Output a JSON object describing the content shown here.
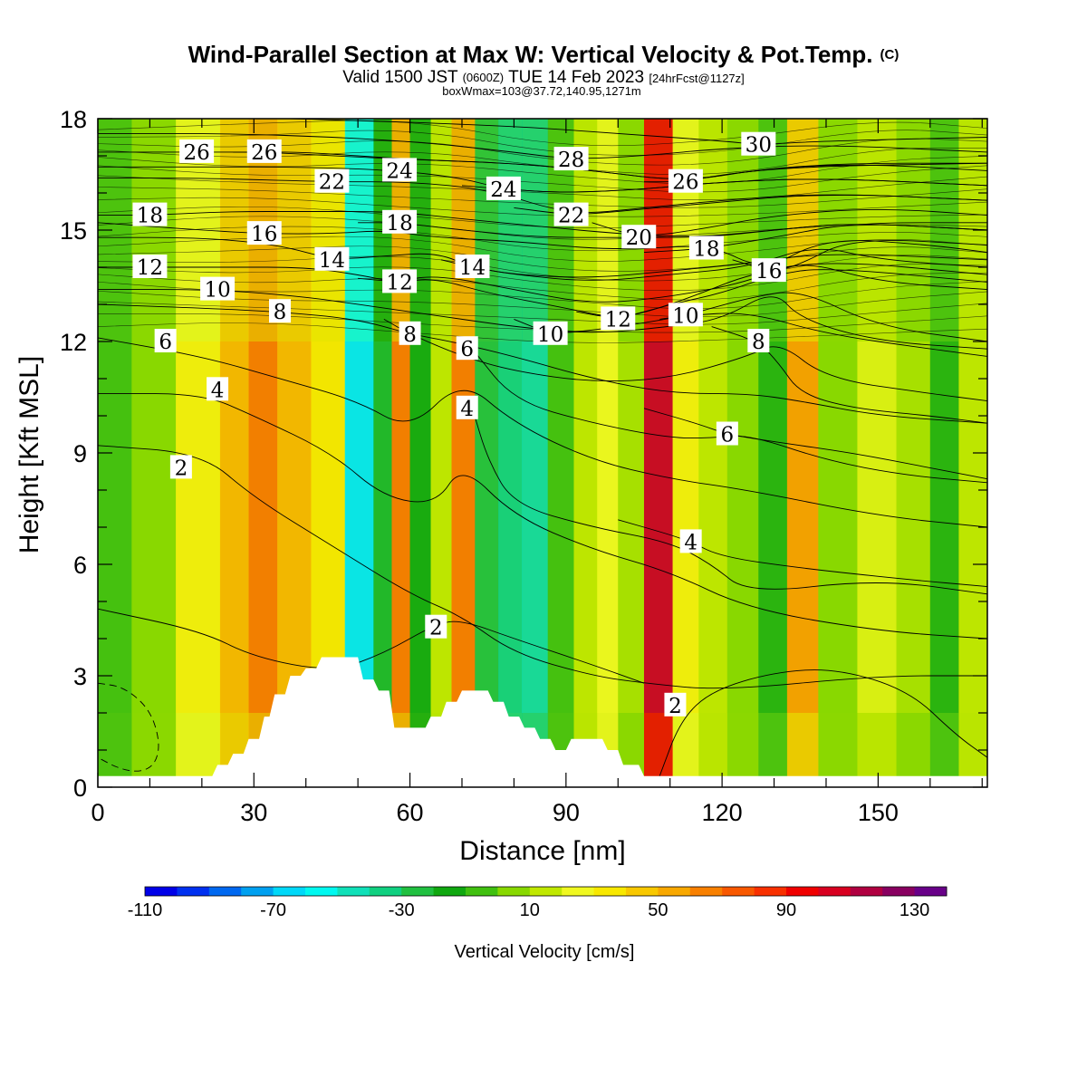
{
  "chart_data": {
    "type": "heatmap",
    "title": "Wind-Parallel Section at Max W: Vertical Velocity & Pot.Temp.",
    "title_mark": "(C)",
    "subtitle_prefix": "Valid 1500 JST",
    "subtitle_small1": "(0600Z)",
    "subtitle_main": "TUE 14 Feb 2023",
    "subtitle_small2": "[24hrFcst@1127z]",
    "subtitle2": "boxWmax=103@37.72,140.95,1271m",
    "xlabel": "Distance [nm]",
    "ylabel": "Height [Kft MSL]",
    "xlim": [
      0,
      171
    ],
    "ylim": [
      0,
      18
    ],
    "x_ticks": [
      0,
      30,
      60,
      90,
      120,
      150
    ],
    "y_ticks": [
      0,
      3,
      6,
      9,
      12,
      15,
      18
    ],
    "grid": false,
    "colorbar": {
      "label": "Vertical Velocity [cm/s]",
      "ticks": [
        "-110",
        "-70",
        "-30",
        "10",
        "50",
        "90",
        "130"
      ],
      "levels": [
        -110,
        -100,
        -90,
        -80,
        -70,
        -60,
        -50,
        -40,
        -30,
        -20,
        -10,
        0,
        10,
        20,
        30,
        40,
        50,
        60,
        70,
        80,
        90,
        100,
        110,
        120,
        130,
        140
      ],
      "colors": [
        "#0000e8",
        "#0030f0",
        "#0068f0",
        "#00a0f0",
        "#00d8f8",
        "#00f8f0",
        "#10e0b8",
        "#10d080",
        "#20c040",
        "#10a810",
        "#40c010",
        "#88d800",
        "#c0e800",
        "#f0f820",
        "#f8e800",
        "#f8c800",
        "#f8a800",
        "#f88000",
        "#f85800",
        "#f83000",
        "#f00000",
        "#d80020",
        "#b00040",
        "#880060",
        "#680088"
      ]
    },
    "vertical_velocity_columns": [
      {
        "x": 3,
        "w": -5
      },
      {
        "x": 10,
        "w": 6
      },
      {
        "x": 20,
        "w": 26
      },
      {
        "x": 27,
        "w": 40
      },
      {
        "x": 31,
        "w": 58
      },
      {
        "x": 38,
        "w": 45
      },
      {
        "x": 44,
        "w": 30
      },
      {
        "x": 51,
        "w": -52
      },
      {
        "x": 55,
        "w": -18
      },
      {
        "x": 58,
        "w": 56
      },
      {
        "x": 62,
        "w": -14
      },
      {
        "x": 66,
        "w": 14
      },
      {
        "x": 70,
        "w": 58
      },
      {
        "x": 75,
        "w": -22
      },
      {
        "x": 79,
        "w": -32
      },
      {
        "x": 84,
        "w": -40
      },
      {
        "x": 89,
        "w": -6
      },
      {
        "x": 94,
        "w": 12
      },
      {
        "x": 98,
        "w": 22
      },
      {
        "x": 102,
        "w": 8
      },
      {
        "x": 108,
        "w": 95
      },
      {
        "x": 113,
        "w": 26
      },
      {
        "x": 118,
        "w": 12
      },
      {
        "x": 124,
        "w": 4
      },
      {
        "x": 130,
        "w": -10
      },
      {
        "x": 135,
        "w": 48
      },
      {
        "x": 142,
        "w": 6
      },
      {
        "x": 150,
        "w": 18
      },
      {
        "x": 157,
        "w": 8
      },
      {
        "x": 163,
        "w": -10
      },
      {
        "x": 168,
        "w": 10
      }
    ],
    "terrain": {
      "x": [
        0,
        22,
        23,
        25,
        26,
        28,
        29,
        31,
        32,
        33,
        34,
        36,
        37,
        39,
        40,
        42,
        43,
        45,
        46,
        50,
        51,
        53,
        54,
        56,
        57,
        63,
        64,
        66,
        67,
        69,
        70,
        75,
        76,
        78,
        79,
        81,
        82,
        84,
        85,
        87,
        88,
        90,
        91,
        97,
        98,
        100,
        101,
        104,
        105,
        106,
        171
      ],
      "y": [
        0.3,
        0.3,
        0.6,
        0.6,
        0.9,
        0.9,
        1.3,
        1.3,
        1.9,
        1.9,
        2.5,
        2.5,
        3.0,
        3.0,
        3.2,
        3.2,
        3.5,
        3.5,
        3.5,
        3.5,
        2.9,
        2.9,
        2.6,
        2.6,
        1.6,
        1.6,
        1.9,
        1.9,
        2.3,
        2.3,
        2.6,
        2.6,
        2.3,
        2.3,
        1.9,
        1.9,
        1.6,
        1.6,
        1.3,
        1.3,
        1.0,
        1.0,
        1.3,
        1.3,
        1.0,
        1.0,
        0.6,
        0.6,
        0.3,
        0.3,
        0.3
      ]
    },
    "pot_temp_contours": [
      {
        "label": "2",
        "label_x": 16,
        "label_y": 8.6,
        "x": [
          0,
          20,
          30,
          45,
          60,
          70,
          80,
          95,
          105,
          120,
          150,
          171
        ],
        "y": [
          9.2,
          9.0,
          7.8,
          6.5,
          5.2,
          4.6,
          3.6,
          3.0,
          2.8,
          2.6,
          3.0,
          3.0
        ]
      },
      {
        "label": "2",
        "label_x": 65,
        "label_y": 4.3,
        "x": [
          0,
          20,
          30,
          45,
          55,
          65,
          70,
          80,
          95,
          105
        ],
        "y": [
          4.8,
          4.2,
          3.5,
          3.1,
          3.6,
          4.4,
          4.5,
          4.0,
          3.3,
          2.8
        ]
      },
      {
        "label": "2",
        "label_x": 111,
        "label_y": 2.2,
        "x": [
          108,
          112,
          118,
          130,
          142,
          156,
          165,
          171
        ],
        "y": [
          0.3,
          1.8,
          2.6,
          3.1,
          3.2,
          2.6,
          1.4,
          0.8
        ]
      },
      {
        "label": "4",
        "label_x": 23,
        "label_y": 10.7,
        "x": [
          0,
          20,
          30,
          45,
          55,
          65,
          70,
          80,
          95,
          110,
          125,
          150,
          171
        ],
        "y": [
          10.6,
          10.6,
          10.0,
          9.0,
          7.8,
          7.6,
          8.7,
          7.3,
          6.4,
          5.8,
          4.8,
          4.2,
          4.0
        ]
      },
      {
        "label": "4",
        "label_x": 71,
        "label_y": 10.2,
        "x": [
          72,
          75,
          80,
          95,
          110,
          118,
          125,
          150,
          171
        ],
        "y": [
          10.2,
          8.8,
          7.6,
          7.0,
          6.6,
          6.0,
          5.2,
          5.6,
          5.2
        ]
      },
      {
        "label": "4",
        "label_x": 114,
        "label_y": 6.6,
        "x": [
          100,
          110,
          114,
          120,
          135,
          155,
          171
        ],
        "y": [
          7.2,
          6.8,
          6.6,
          6.2,
          5.9,
          5.6,
          5.4
        ]
      },
      {
        "label": "6",
        "label_x": 13,
        "label_y": 12.0,
        "x": [
          0,
          20,
          35,
          50,
          60,
          70,
          80,
          95,
          110,
          125,
          150,
          171
        ],
        "y": [
          12.1,
          11.6,
          11.0,
          10.4,
          9.6,
          11.0,
          9.8,
          8.8,
          8.3,
          8.0,
          7.3,
          7.0
        ]
      },
      {
        "label": "6",
        "label_x": 71,
        "label_y": 11.8,
        "x": [
          72,
          80,
          95,
          110,
          118,
          125,
          140,
          155,
          171
        ],
        "y": [
          11.8,
          10.4,
          9.8,
          9.4,
          9.4,
          9.5,
          8.8,
          8.4,
          8.2
        ]
      },
      {
        "label": "6",
        "label_x": 121,
        "label_y": 9.5,
        "x": [
          105,
          115,
          121,
          130,
          145,
          160,
          171
        ],
        "y": [
          10.2,
          9.8,
          9.5,
          9.3,
          9.0,
          8.6,
          8.3
        ]
      },
      {
        "label": "8",
        "label_x": 35,
        "label_y": 12.8,
        "x": [
          0,
          20,
          35,
          50,
          60,
          68,
          80,
          95,
          110,
          125,
          135,
          150,
          171
        ],
        "y": [
          13.0,
          12.9,
          12.8,
          12.6,
          12.2,
          12.0,
          11.6,
          11.0,
          10.6,
          10.6,
          10.4,
          10.0,
          9.8
        ]
      },
      {
        "label": "8",
        "label_x": 60,
        "label_y": 12.2,
        "x": [
          55,
          60,
          70,
          80,
          95,
          110,
          125,
          131,
          140,
          160,
          171
        ],
        "y": [
          12.6,
          12.2,
          11.6,
          11.2,
          10.9,
          11.0,
          11.6,
          12.0,
          11.0,
          10.6,
          10.4
        ]
      },
      {
        "label": "8",
        "label_x": 127,
        "label_y": 12.0,
        "x": [
          118,
          127,
          131,
          135,
          145,
          160,
          171
        ],
        "y": [
          12.4,
          12.0,
          11.4,
          10.6,
          10.2,
          10.0,
          9.8
        ]
      },
      {
        "label": "10",
        "label_x": 23,
        "label_y": 13.4,
        "x": [
          0,
          23,
          40,
          50,
          60,
          70,
          80,
          95,
          110,
          120,
          130,
          135,
          150,
          171
        ],
        "y": [
          13.4,
          13.4,
          13.2,
          13.0,
          12.8,
          12.6,
          12.4,
          12.2,
          12.4,
          12.6,
          13.4,
          12.6,
          12.0,
          11.8
        ]
      },
      {
        "label": "10",
        "label_x": 87,
        "label_y": 12.2,
        "x": [
          80,
          87,
          95,
          105,
          113,
          125,
          140,
          160,
          171
        ],
        "y": [
          12.6,
          12.2,
          12.3,
          12.5,
          12.7,
          12.8,
          12.2,
          11.8,
          11.6
        ]
      },
      {
        "label": "10",
        "label_x": 113,
        "label_y": 12.7,
        "x": [
          108,
          113,
          118,
          126,
          135,
          150,
          171
        ],
        "y": [
          12.6,
          12.7,
          12.9,
          13.2,
          13.4,
          12.4,
          12.0
        ]
      },
      {
        "label": "12",
        "label_x": 10,
        "label_y": 14.0,
        "x": [
          0,
          10,
          25,
          40,
          50,
          57,
          65,
          80,
          95,
          110,
          125,
          135,
          150,
          171
        ],
        "y": [
          14.0,
          14.0,
          14.0,
          14.0,
          13.8,
          13.6,
          13.8,
          13.4,
          13.0,
          13.2,
          13.6,
          14.2,
          13.6,
          13.4
        ]
      },
      {
        "label": "12",
        "label_x": 58,
        "label_y": 13.6,
        "x": [
          50,
          58,
          65,
          75,
          90,
          100,
          110,
          120,
          130,
          140,
          171
        ],
        "y": [
          13.7,
          13.6,
          13.7,
          13.3,
          12.9,
          12.6,
          13.0,
          13.3,
          13.8,
          14.0,
          13.6
        ]
      },
      {
        "label": "12",
        "label_x": 100,
        "label_y": 12.6,
        "x": [
          92,
          100,
          108,
          116,
          125,
          140,
          171
        ],
        "y": [
          12.8,
          12.6,
          12.9,
          13.3,
          13.8,
          14.2,
          13.8
        ]
      },
      {
        "label": "14",
        "label_x": 45,
        "label_y": 14.2,
        "x": [
          0,
          20,
          35,
          45,
          55,
          65,
          72,
          80,
          95,
          110,
          125,
          138,
          150,
          171
        ],
        "y": [
          14.8,
          14.8,
          14.6,
          14.2,
          14.3,
          14.4,
          14.0,
          13.8,
          13.6,
          13.8,
          14.0,
          14.6,
          14.2,
          14.0
        ]
      },
      {
        "label": "14",
        "label_x": 72,
        "label_y": 14.0,
        "x": [
          66,
          72,
          80,
          95,
          110,
          125,
          140,
          171
        ],
        "y": [
          14.2,
          14.0,
          13.8,
          13.7,
          13.9,
          14.1,
          14.4,
          14.2
        ]
      },
      {
        "label": "16",
        "label_x": 32,
        "label_y": 14.9,
        "x": [
          0,
          20,
          32,
          45,
          55,
          65,
          80,
          95,
          105,
          118,
          128,
          140,
          160,
          171
        ],
        "y": [
          15.2,
          15.0,
          14.9,
          14.9,
          15.0,
          14.8,
          14.7,
          14.5,
          14.5,
          14.6,
          13.9,
          14.8,
          14.6,
          14.4
        ]
      },
      {
        "label": "16",
        "label_x": 129,
        "label_y": 13.9,
        "x": [
          122,
          129,
          134,
          145,
          171
        ],
        "y": [
          14.2,
          13.9,
          14.0,
          14.8,
          14.6
        ]
      },
      {
        "label": "18",
        "label_x": 10,
        "label_y": 15.4,
        "x": [
          0,
          10,
          25,
          40,
          57,
          70,
          85,
          100,
          115,
          130,
          145,
          171
        ],
        "y": [
          15.4,
          15.4,
          15.5,
          15.5,
          15.5,
          15.3,
          15.1,
          14.9,
          14.8,
          15.0,
          15.2,
          15.0
        ]
      },
      {
        "label": "18",
        "label_x": 58,
        "label_y": 15.2,
        "x": [
          50,
          58,
          70,
          85,
          100,
          117,
          130,
          145,
          171
        ],
        "y": [
          15.2,
          15.2,
          15.0,
          14.8,
          14.8,
          14.8,
          15.0,
          15.2,
          15.0
        ]
      },
      {
        "label": "18",
        "label_x": 117,
        "label_y": 14.5,
        "x": [
          105,
          117,
          130,
          145,
          171
        ],
        "y": [
          14.4,
          14.5,
          14.8,
          15.2,
          15.2
        ]
      },
      {
        "label": "20",
        "label_x": 104,
        "label_y": 14.8,
        "x": [
          95,
          104,
          115,
          130,
          150,
          171
        ],
        "y": [
          15.2,
          14.8,
          15.0,
          15.4,
          15.6,
          15.4
        ]
      },
      {
        "label": "22",
        "label_x": 45,
        "label_y": 16.3,
        "x": [
          0,
          20,
          45,
          60,
          75,
          91,
          105,
          120,
          140,
          171
        ],
        "y": [
          16.4,
          16.4,
          16.3,
          16.3,
          16.1,
          15.4,
          15.6,
          15.8,
          16.0,
          15.8
        ]
      },
      {
        "label": "22",
        "label_x": 91,
        "label_y": 15.4,
        "x": [
          80,
          91,
          100,
          115,
          140,
          171
        ],
        "y": [
          15.6,
          15.4,
          15.5,
          15.7,
          16.0,
          15.8
        ]
      },
      {
        "label": "24",
        "label_x": 58,
        "label_y": 16.6,
        "x": [
          0,
          20,
          40,
          58,
          70,
          78,
          90,
          105,
          120,
          140,
          171
        ],
        "y": [
          16.7,
          16.7,
          16.7,
          16.6,
          16.4,
          16.1,
          16.0,
          16.1,
          16.3,
          16.4,
          16.2
        ]
      },
      {
        "label": "24",
        "label_x": 78,
        "label_y": 16.1,
        "x": [
          70,
          78,
          90,
          105,
          120,
          140,
          171
        ],
        "y": [
          16.2,
          16.1,
          16.0,
          16.1,
          16.3,
          16.4,
          16.2
        ]
      },
      {
        "label": "26",
        "label_x": 19,
        "label_y": 17.1,
        "x": [
          0,
          19,
          32,
          45,
          60,
          80,
          95,
          113,
          125,
          145,
          171
        ],
        "y": [
          17.1,
          17.1,
          17.1,
          17.0,
          16.9,
          16.8,
          16.6,
          16.3,
          16.6,
          16.8,
          16.6
        ]
      },
      {
        "label": "26",
        "label_x": 32,
        "label_y": 17.1,
        "x": [
          26,
          32,
          40,
          60,
          80,
          95,
          113,
          130,
          171
        ],
        "y": [
          17.1,
          17.1,
          17.1,
          16.9,
          16.8,
          16.6,
          16.3,
          16.7,
          16.8
        ]
      },
      {
        "label": "26",
        "label_x": 113,
        "label_y": 16.3,
        "x": [
          105,
          113,
          120,
          140,
          171
        ],
        "y": [
          16.3,
          16.3,
          16.5,
          16.8,
          16.8
        ]
      },
      {
        "label": "28",
        "label_x": 91,
        "label_y": 16.9,
        "x": [
          0,
          30,
          60,
          80,
          91,
          105,
          120,
          140,
          171
        ],
        "y": [
          17.6,
          17.6,
          17.4,
          17.1,
          16.9,
          17.0,
          17.2,
          17.3,
          17.1
        ]
      },
      {
        "label": "30",
        "label_x": 127,
        "label_y": 17.3,
        "x": [
          0,
          40,
          80,
          100,
          120,
          127,
          140,
          171
        ],
        "y": [
          18.1,
          18.0,
          17.8,
          17.6,
          17.4,
          17.3,
          17.4,
          17.5
        ]
      }
    ],
    "dashed_contours": [
      {
        "x": [
          0,
          5,
          10,
          12,
          11,
          8,
          4,
          0
        ],
        "y": [
          2.8,
          2.7,
          2.1,
          1.2,
          0.6,
          0.4,
          0.5,
          0.8
        ]
      }
    ]
  }
}
